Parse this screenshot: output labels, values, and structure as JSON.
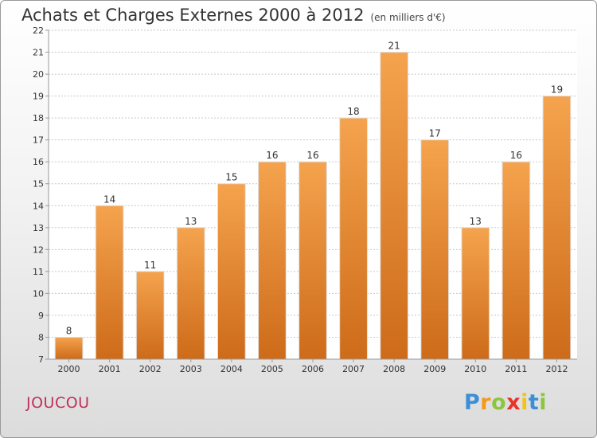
{
  "title": "Achats et Charges Externes 2000 à 2012",
  "unit": "(en milliers d'€)",
  "city": "JOUCOU",
  "brand": {
    "letters": [
      "P",
      "r",
      "o",
      "x",
      "i",
      "t",
      "i"
    ],
    "colors": [
      "#3c8fd6",
      "#f39a1e",
      "#8cc63f",
      "#e8332a",
      "#f0c419",
      "#3c8fd6",
      "#8cc63f"
    ]
  },
  "chart_data": {
    "type": "bar",
    "categories": [
      "2000",
      "2001",
      "2002",
      "2003",
      "2004",
      "2005",
      "2006",
      "2007",
      "2008",
      "2009",
      "2010",
      "2011",
      "2012"
    ],
    "values": [
      8,
      14,
      11,
      13,
      15,
      16,
      16,
      18,
      21,
      17,
      13,
      16,
      19
    ],
    "yticks": [
      7,
      8,
      9,
      10,
      11,
      12,
      13,
      14,
      15,
      16,
      17,
      18,
      19,
      20,
      21,
      22
    ],
    "ylim": [
      7,
      22
    ],
    "grid": true,
    "bar_color_top": "#f5a34e",
    "bar_color_bottom": "#cd6b19",
    "data_labels": true
  }
}
